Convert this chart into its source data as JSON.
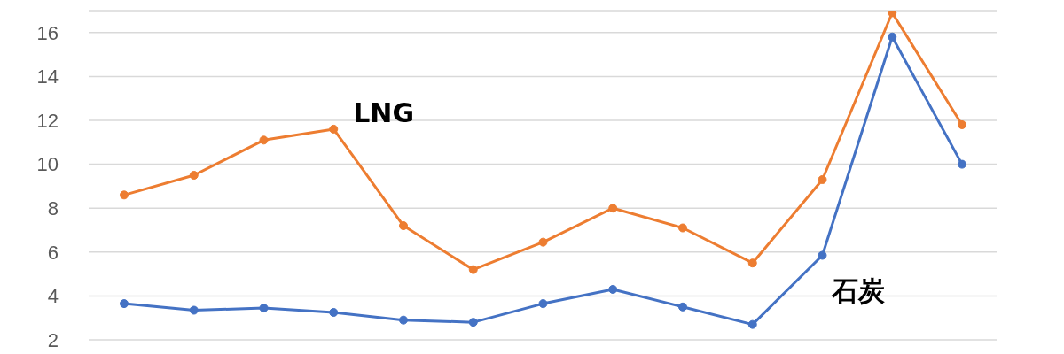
{
  "chart_data": {
    "type": "line",
    "categories": [
      null,
      null,
      null,
      null,
      null,
      null,
      null,
      null,
      null,
      null,
      null,
      null,
      null
    ],
    "series": [
      {
        "name": "LNG",
        "color": "#ed7d31",
        "values": [
          8.6,
          9.5,
          11.1,
          11.6,
          7.2,
          5.2,
          6.45,
          8.0,
          7.1,
          5.5,
          9.3,
          16.9,
          11.8
        ]
      },
      {
        "name": "石炭",
        "color": "#4472c4",
        "values": [
          3.65,
          3.35,
          3.45,
          3.25,
          2.9,
          2.8,
          3.65,
          4.3,
          3.5,
          2.7,
          5.85,
          15.8,
          10.0
        ]
      }
    ],
    "ylim": [
      2,
      17
    ],
    "yticks": [
      2,
      4,
      6,
      8,
      10,
      12,
      14,
      16
    ],
    "grid": "y",
    "tick_labels": "y",
    "marker": "circle",
    "line_style": "solid",
    "legend": false
  }
}
